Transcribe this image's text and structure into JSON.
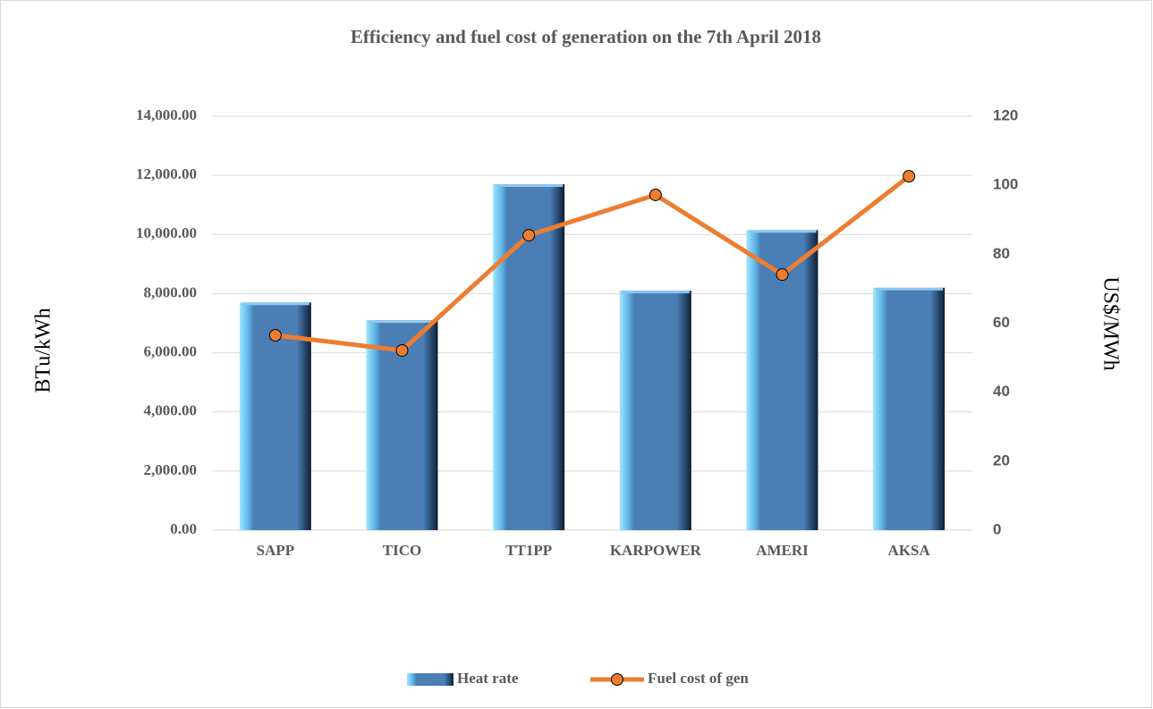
{
  "chart_data": {
    "type": "bar",
    "title": "Efficiency and fuel cost of generation on the 7th April 2018",
    "categories": [
      "SAPP",
      "TICO",
      "TT1PP",
      "KARPOWER",
      "AMERI",
      "AKSA"
    ],
    "series": [
      {
        "name": "Heat rate",
        "type": "bar",
        "color": "#4a7eb5",
        "values": [
          7700,
          7100,
          11700,
          8100,
          10150,
          8200
        ]
      },
      {
        "name": "Fuel cost of gen",
        "type": "line",
        "axis": "y2",
        "color": "#ed7d31",
        "values": [
          56.5,
          52.1,
          85.5,
          97.2,
          74.1,
          102.6
        ]
      }
    ],
    "y_label": "BTu/kWh",
    "y2_label": "US$/MWh",
    "ylim": [
      0,
      14000
    ],
    "yticks": [
      {
        "value": 0,
        "label": "0.00"
      },
      {
        "value": 2000,
        "label": "2,000.00"
      },
      {
        "value": 4000,
        "label": "4,000.00"
      },
      {
        "value": 6000,
        "label": "6,000.00"
      },
      {
        "value": 8000,
        "label": "8,000.00"
      },
      {
        "value": 10000,
        "label": "10,000.00"
      },
      {
        "value": 12000,
        "label": "12,000.00"
      },
      {
        "value": 14000,
        "label": "14,000.00"
      }
    ],
    "y2lim": [
      0,
      120
    ],
    "y2ticks": [
      0,
      20,
      40,
      60,
      80,
      100,
      120
    ],
    "grid": true,
    "legend": "bottom"
  }
}
